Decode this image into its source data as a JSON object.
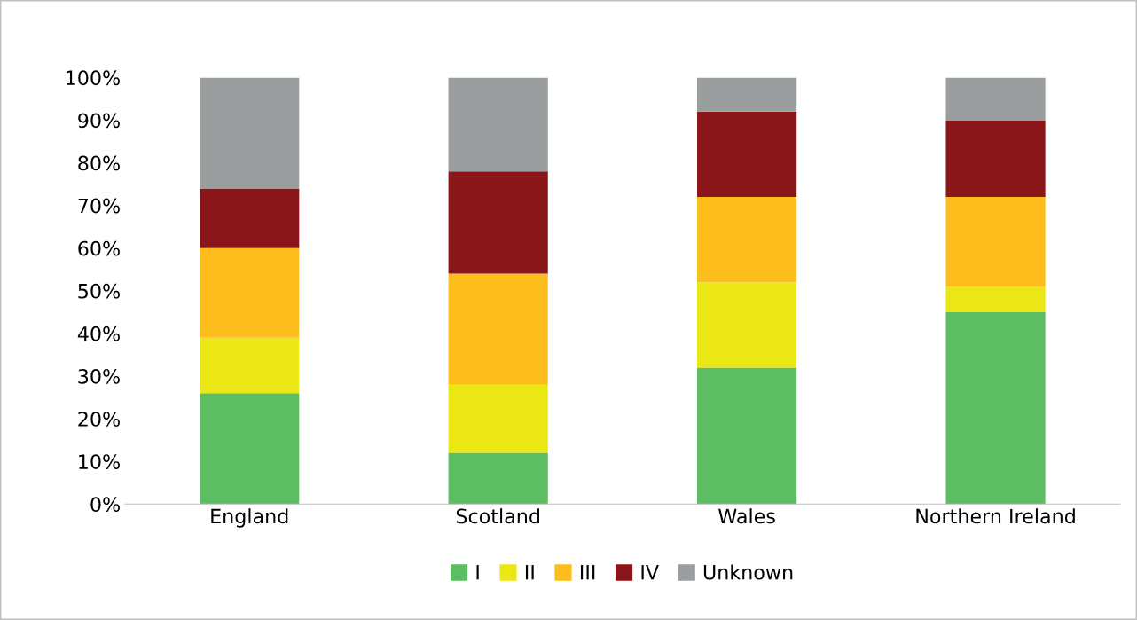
{
  "chart_data": {
    "type": "bar",
    "stacked": true,
    "categories": [
      "England",
      "Scotland",
      "Wales",
      "Northern Ireland"
    ],
    "series": [
      {
        "name": "I",
        "color": "#5cbd62",
        "values": [
          26,
          12,
          32,
          45
        ]
      },
      {
        "name": "II",
        "color": "#ebe714",
        "values": [
          13,
          16,
          20,
          6
        ]
      },
      {
        "name": "III",
        "color": "#fdbd1c",
        "values": [
          21,
          26,
          20,
          21
        ]
      },
      {
        "name": "IV",
        "color": "#8b1619",
        "values": [
          14,
          24,
          20,
          18
        ]
      },
      {
        "name": "Unknown",
        "color": "#9a9e9e",
        "values": [
          26,
          22,
          8,
          10
        ]
      }
    ],
    "ylim": [
      0,
      100
    ],
    "yticks": [
      {
        "value": 0,
        "label": "0%"
      },
      {
        "value": 10,
        "label": "10%"
      },
      {
        "value": 20,
        "label": "20%"
      },
      {
        "value": 30,
        "label": "30%"
      },
      {
        "value": 40,
        "label": "40%"
      },
      {
        "value": 50,
        "label": "50%"
      },
      {
        "value": 60,
        "label": "60%"
      },
      {
        "value": 70,
        "label": "70%"
      },
      {
        "value": 80,
        "label": "80%"
      },
      {
        "value": 90,
        "label": "90%"
      },
      {
        "value": 100,
        "label": "100%"
      }
    ],
    "grid": false,
    "legend": "bottom"
  }
}
